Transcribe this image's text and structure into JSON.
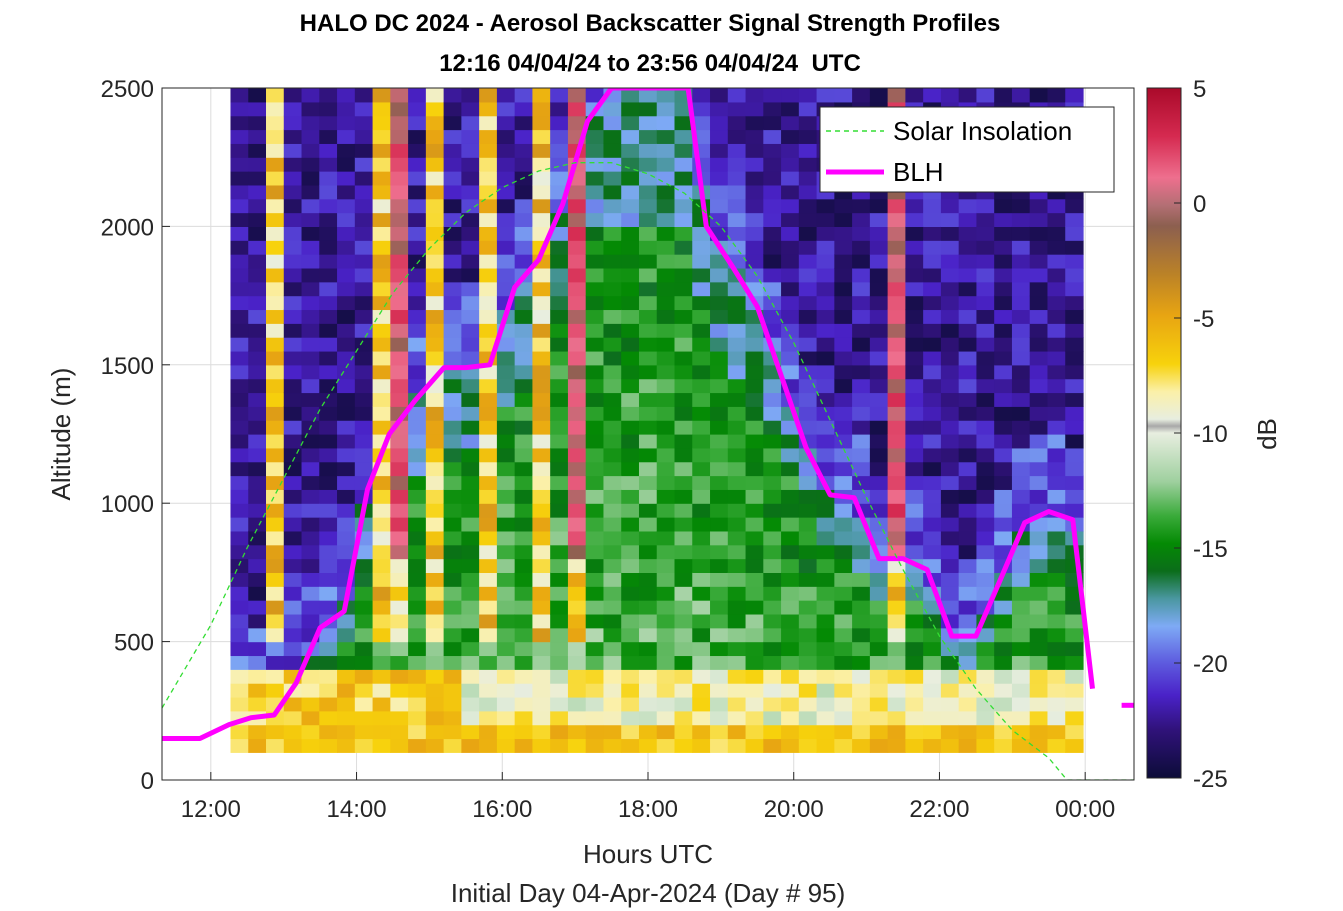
{
  "chart_data": {
    "type": "heatmap",
    "title": "HALO DC 2024 - Aerosol Backscatter Signal Strength Profiles",
    "subtitle": "12:16 04/04/24 to 23:56 04/04/24  UTC",
    "xlabel": "Hours UTC",
    "xlabel2": "Initial Day 04-Apr-2024 (Day # 95)",
    "ylabel": "Altitude (m)",
    "xlim": [
      11.33,
      24.67
    ],
    "ylim": [
      0,
      2500
    ],
    "x_tick_labels": [
      "12:00",
      "14:00",
      "16:00",
      "18:00",
      "20:00",
      "22:00",
      "00:00"
    ],
    "x_tick_hours": [
      12,
      14,
      16,
      18,
      20,
      22,
      24
    ],
    "y_ticks": [
      0,
      500,
      1000,
      1500,
      2000,
      2500
    ],
    "grid": true,
    "colorbar": {
      "label": "dB",
      "range": [
        -25,
        5
      ],
      "ticks": [
        5,
        0,
        -5,
        -10,
        -15,
        -20,
        -25
      ]
    },
    "heatmap": {
      "x_start": 12.27,
      "x_end": 23.97,
      "y_start": 100,
      "y_end": 2500
    },
    "legend": {
      "placement": "top-right",
      "entries": [
        {
          "label": "Solar Insolation",
          "color": "#33dd33",
          "style": "dashed"
        },
        {
          "label": "BLH",
          "color": "#ff00ff",
          "style": "solid"
        }
      ]
    },
    "series": [
      {
        "name": "BLH",
        "color": "#ff00ff",
        "x": [
          11.33,
          11.85,
          12.25,
          12.55,
          12.87,
          13.17,
          13.5,
          13.83,
          14.15,
          14.45,
          14.8,
          15.2,
          15.5,
          15.83,
          16.17,
          16.5,
          16.83,
          17.17,
          17.5,
          18.55,
          18.8,
          19.17,
          19.5,
          19.83,
          20.17,
          20.5,
          20.83,
          21.17,
          21.5,
          21.83,
          22.17,
          22.5,
          22.83,
          23.17,
          23.5,
          23.83,
          24.1
        ],
        "y": [
          150,
          150,
          200,
          225,
          235,
          350,
          550,
          610,
          1050,
          1250,
          1370,
          1490,
          1490,
          1500,
          1780,
          1880,
          2080,
          2380,
          2500,
          2500,
          2000,
          1850,
          1710,
          1460,
          1200,
          1030,
          1020,
          800,
          800,
          760,
          520,
          520,
          720,
          930,
          970,
          940,
          330
        ]
      },
      {
        "name": "BLH",
        "color": "#ff00ff",
        "x": [
          24.5,
          24.67
        ],
        "y": [
          270,
          270
        ]
      },
      {
        "name": "Solar Insolation",
        "color": "#33dd33",
        "x": [
          11.33,
          12.0,
          12.5,
          13.0,
          13.5,
          14.0,
          14.5,
          15.0,
          15.5,
          16.0,
          16.5,
          17.0,
          17.5,
          18.0,
          18.5,
          19.0,
          19.5,
          20.0,
          20.5,
          21.0,
          21.5,
          22.0,
          22.5,
          23.0,
          23.5,
          23.75,
          24.67
        ],
        "y": [
          260,
          560,
          840,
          1090,
          1340,
          1550,
          1760,
          1920,
          2050,
          2140,
          2200,
          2230,
          2230,
          2190,
          2120,
          2000,
          1820,
          1580,
          1300,
          1020,
          760,
          520,
          330,
          180,
          80,
          0,
          0
        ]
      }
    ]
  }
}
